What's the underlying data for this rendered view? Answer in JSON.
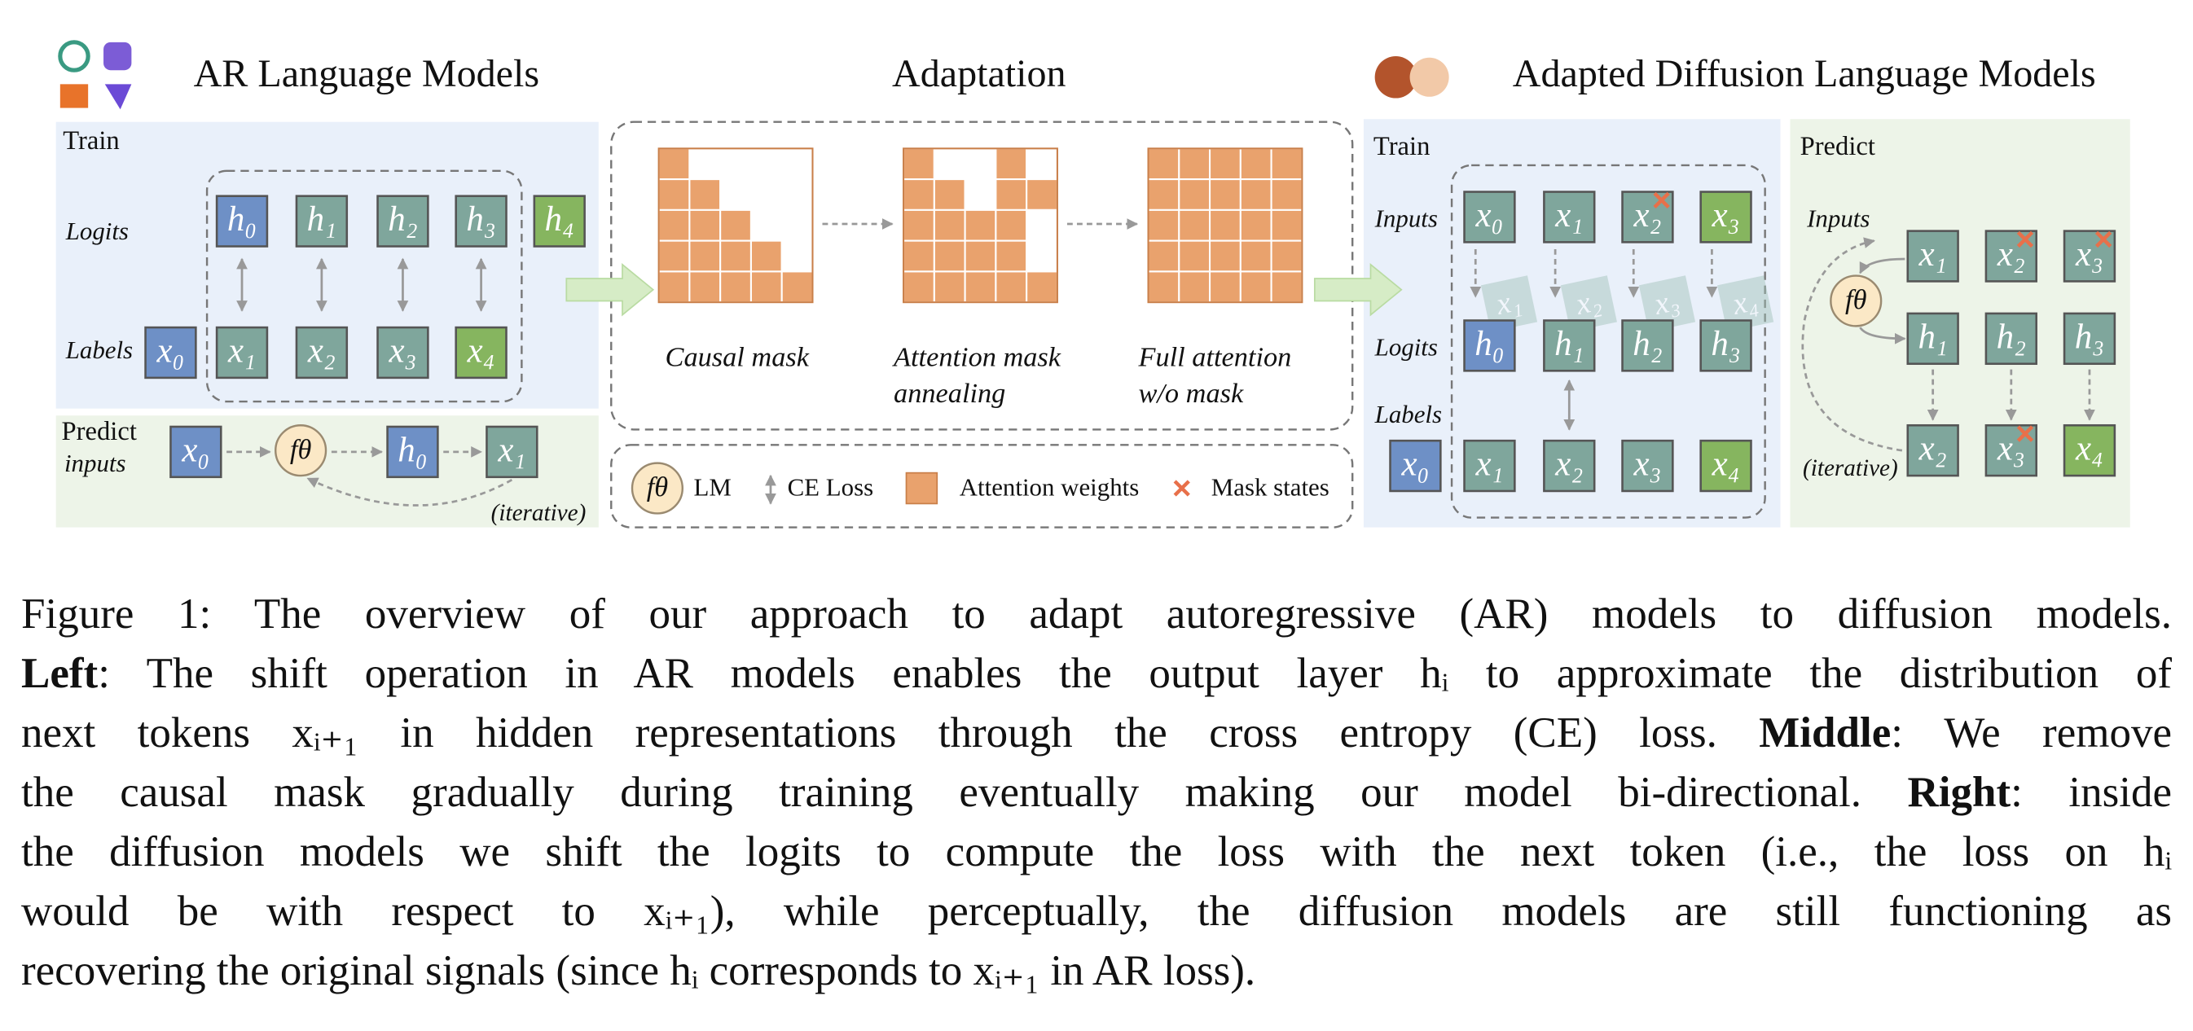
{
  "header": {
    "left_title": "AR Language Models",
    "middle_title": "Adaptation",
    "right_title": "Adapted Diffusion Language Models"
  },
  "left": {
    "train_label": "Train",
    "logits_label": "Logits",
    "labels_label": "Labels",
    "logits": [
      {
        "label": "h₀",
        "color": "#6e90c6"
      },
      {
        "label": "h₁",
        "color": "#7fa69c"
      },
      {
        "label": "h₂",
        "color": "#7fa69c"
      },
      {
        "label": "h₃",
        "color": "#7fa69c"
      },
      {
        "label": "h₄",
        "color": "#86b55f"
      }
    ],
    "labels": [
      {
        "label": "x₀",
        "color": "#6e90c6"
      },
      {
        "label": "x₁",
        "color": "#7fa69c"
      },
      {
        "label": "x₂",
        "color": "#7fa69c"
      },
      {
        "label": "x₃",
        "color": "#7fa69c"
      },
      {
        "label": "x₄",
        "color": "#86b55f"
      }
    ],
    "predict_label": "Predict",
    "inputs_label": "inputs",
    "predict_tokens": [
      {
        "label": "x₀",
        "color": "#6e90c6"
      },
      {
        "label": "h₀",
        "color": "#6e90c6"
      },
      {
        "label": "x₁",
        "color": "#7fa69c"
      }
    ],
    "f": "fθ",
    "iterative": "(iterative)"
  },
  "middle": {
    "masks": [
      {
        "caption": [
          "Causal mask"
        ],
        "white": [
          [
            0,
            1
          ],
          [
            0,
            2
          ],
          [
            0,
            3
          ],
          [
            0,
            4
          ],
          [
            1,
            2
          ],
          [
            1,
            3
          ],
          [
            1,
            4
          ],
          [
            2,
            3
          ],
          [
            2,
            4
          ],
          [
            3,
            4
          ]
        ]
      },
      {
        "caption": [
          "Attention mask",
          "annealing"
        ],
        "white": [
          [
            0,
            1
          ],
          [
            0,
            2
          ],
          [
            0,
            4
          ],
          [
            1,
            2
          ],
          [
            2,
            4
          ],
          [
            3,
            4
          ]
        ]
      },
      {
        "caption": [
          "Full attention",
          "w/o mask"
        ],
        "white": []
      }
    ],
    "cell_color": "#e9a26d",
    "legend": {
      "lm_symbol": "fθ",
      "lm": "LM",
      "ce": "CE Loss",
      "attn": "Attention weights",
      "mask": "Mask states"
    }
  },
  "right": {
    "train_label": "Train",
    "inputs_label": "Inputs",
    "logits_label": "Logits",
    "labels_label": "Labels",
    "inputs": [
      {
        "label": "x₀",
        "color": "#7fa69c"
      },
      {
        "label": "x₁",
        "color": "#7fa69c"
      },
      {
        "label": "x₂",
        "color": "#7fa69c",
        "masked": true
      },
      {
        "label": "x₃",
        "color": "#86b55f"
      }
    ],
    "shifted": [
      {
        "label": "x₁"
      },
      {
        "label": "x₂"
      },
      {
        "label": "x₃"
      },
      {
        "label": "x₄"
      }
    ],
    "logits": [
      {
        "label": "h₀",
        "color": "#6e90c6"
      },
      {
        "label": "h₁",
        "color": "#7fa69c"
      },
      {
        "label": "h₂",
        "color": "#7fa69c"
      },
      {
        "label": "h₃",
        "color": "#7fa69c"
      }
    ],
    "labels": [
      {
        "label": "x₀",
        "color": "#6e90c6"
      },
      {
        "label": "x₁",
        "color": "#7fa69c"
      },
      {
        "label": "x₂",
        "color": "#7fa69c"
      },
      {
        "label": "x₃",
        "color": "#7fa69c"
      },
      {
        "label": "x₄",
        "color": "#86b55f"
      }
    ],
    "predict_label": "Predict",
    "predict_inputs_label": "Inputs",
    "f": "fθ",
    "iterative": "(iterative)",
    "predict_rows": [
      [
        {
          "label": "x₁",
          "color": "#7fa69c"
        },
        {
          "label": "x₂",
          "color": "#7fa69c",
          "masked": true
        },
        {
          "label": "x₃",
          "color": "#7fa69c",
          "masked": true
        }
      ],
      [
        {
          "label": "h₁",
          "color": "#7fa69c"
        },
        {
          "label": "h₂",
          "color": "#7fa69c"
        },
        {
          "label": "h₃",
          "color": "#7fa69c"
        }
      ],
      [
        {
          "label": "x₂",
          "color": "#7fa69c"
        },
        {
          "label": "x₃",
          "color": "#7fa69c",
          "masked": true
        },
        {
          "label": "x₄",
          "color": "#86b55f"
        }
      ]
    ]
  },
  "caption": {
    "lines": [
      [
        {
          "text": "Figure 1: The overview of our approach to adapt autoregressive (AR) models to diffusion models."
        }
      ],
      [
        {
          "text": "Left",
          "bold": true
        },
        {
          "text": ": The shift operation in AR models enables the output layer hᵢ to approximate the distribution of"
        }
      ],
      [
        {
          "text": "next tokens xᵢ₊₁ in hidden representations through the cross entropy (CE) loss. "
        },
        {
          "text": "Middle",
          "bold": true
        },
        {
          "text": ": We remove"
        }
      ],
      [
        {
          "text": "the causal mask gradually during training eventually making our model bi-directional. "
        },
        {
          "text": "Right",
          "bold": true
        },
        {
          "text": ": inside"
        }
      ],
      [
        {
          "text": "the diffusion models we shift the logits to compute the loss with the next token (i.e., the loss on hᵢ"
        }
      ],
      [
        {
          "text": "would be with respect to xᵢ₊₁), while perceptually, the diffusion models are still functioning as"
        }
      ],
      [
        {
          "text": "recovering the original signals (since hᵢ corresponds to xᵢ₊₁ in AR loss)."
        }
      ]
    ]
  }
}
